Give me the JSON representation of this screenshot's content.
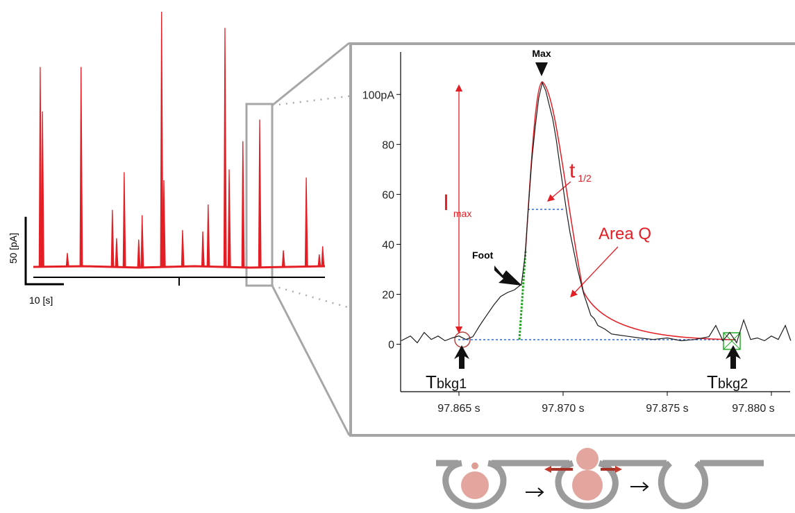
{
  "chart_data": [
    {
      "type": "spike",
      "color": "#e31e24",
      "x": [
        1.8,
        2.4,
        8.9,
        12.5,
        20.7,
        21.8,
        23.8,
        27.6,
        28.5,
        33.6,
        34.2,
        39.1,
        44.4,
        45.8,
        50.2,
        51.3,
        54.9,
        59.3,
        65.5,
        71.5,
        74.9,
        75.8
      ],
      "values": [
        148,
        115,
        10,
        148,
        42,
        21,
        70,
        20,
        38,
        189,
        64,
        27,
        26,
        46,
        177,
        72,
        93,
        109,
        12,
        66,
        9,
        15
      ],
      "xlim": [
        0,
        76.4
      ],
      "ylim": [
        -8,
        190
      ],
      "scalebar": {
        "y": 50,
        "y_label": "50 [pA]",
        "x": 10,
        "x_label": "10 [s]"
      }
    },
    {
      "type": "line",
      "color": "#1a1a1a",
      "x": [
        97.86223,
        97.86267,
        97.863,
        97.86333,
        97.86367,
        97.864,
        97.86433,
        97.86467,
        97.865,
        97.86533,
        97.86567,
        97.866,
        97.86633,
        97.86667,
        97.867,
        97.86733,
        97.86767,
        97.868,
        97.86817,
        97.86833,
        97.8685,
        97.86867,
        97.86883,
        97.869,
        97.86917,
        97.86933,
        97.8695,
        97.86967,
        97.86983,
        97.87,
        97.87017,
        97.87033,
        97.8705,
        97.87067,
        97.87083,
        97.871,
        97.87117,
        97.87133,
        97.8715,
        97.87167,
        97.872,
        97.87233,
        97.873,
        97.87367,
        97.87433,
        97.875,
        97.87567,
        97.87633,
        97.877,
        97.87733,
        97.87767,
        97.878,
        97.87833,
        97.87867,
        97.879,
        97.87933,
        97.87967,
        97.88,
        97.88033,
        97.88067,
        97.88093
      ],
      "values": [
        1.4,
        3.3,
        0.6,
        4.7,
        1.9,
        3.3,
        1.4,
        2.5,
        3.3,
        1.9,
        3.0,
        7.5,
        11.6,
        15.7,
        19.1,
        20.7,
        21.8,
        24.0,
        35.1,
        54.4,
        73.8,
        87.6,
        98.6,
        104.7,
        101.4,
        95.9,
        90.3,
        82.0,
        72.4,
        62.7,
        53.0,
        44.8,
        37.8,
        30.9,
        25.4,
        19.9,
        15.7,
        11.6,
        10.2,
        7.5,
        6.1,
        4.1,
        3.3,
        2.5,
        1.9,
        2.5,
        1.4,
        1.9,
        3.0,
        7.5,
        1.4,
        4.7,
        0.6,
        9.7,
        1.9,
        2.5,
        1.4,
        3.3,
        1.9,
        7.5,
        1.4
      ],
      "xlim": [
        97.8622,
        97.8809
      ],
      "ylim": [
        -19,
        117
      ],
      "xticks": [
        {
          "value": 97.865,
          "label": "97.865 s"
        },
        {
          "value": 97.87,
          "label": "97.870 s"
        },
        {
          "value": 97.875,
          "label": "97.875 s"
        },
        {
          "value": 97.88,
          "label": "97.880 s"
        }
      ],
      "yticks": [
        0,
        20,
        40,
        60,
        80,
        {
          "value": 100,
          "label": "100pA"
        }
      ],
      "annotations": {
        "max": "Max",
        "foot": "Foot",
        "t_half": {
          "main": "t",
          "sub": "1/2"
        },
        "i_max": {
          "main": "I",
          "sub": "max"
        },
        "area": "Area Q",
        "tbkg1": {
          "main": "T",
          "sub": "bkg1"
        },
        "tbkg2": {
          "main": "T",
          "sub": "bkg2"
        }
      }
    }
  ]
}
